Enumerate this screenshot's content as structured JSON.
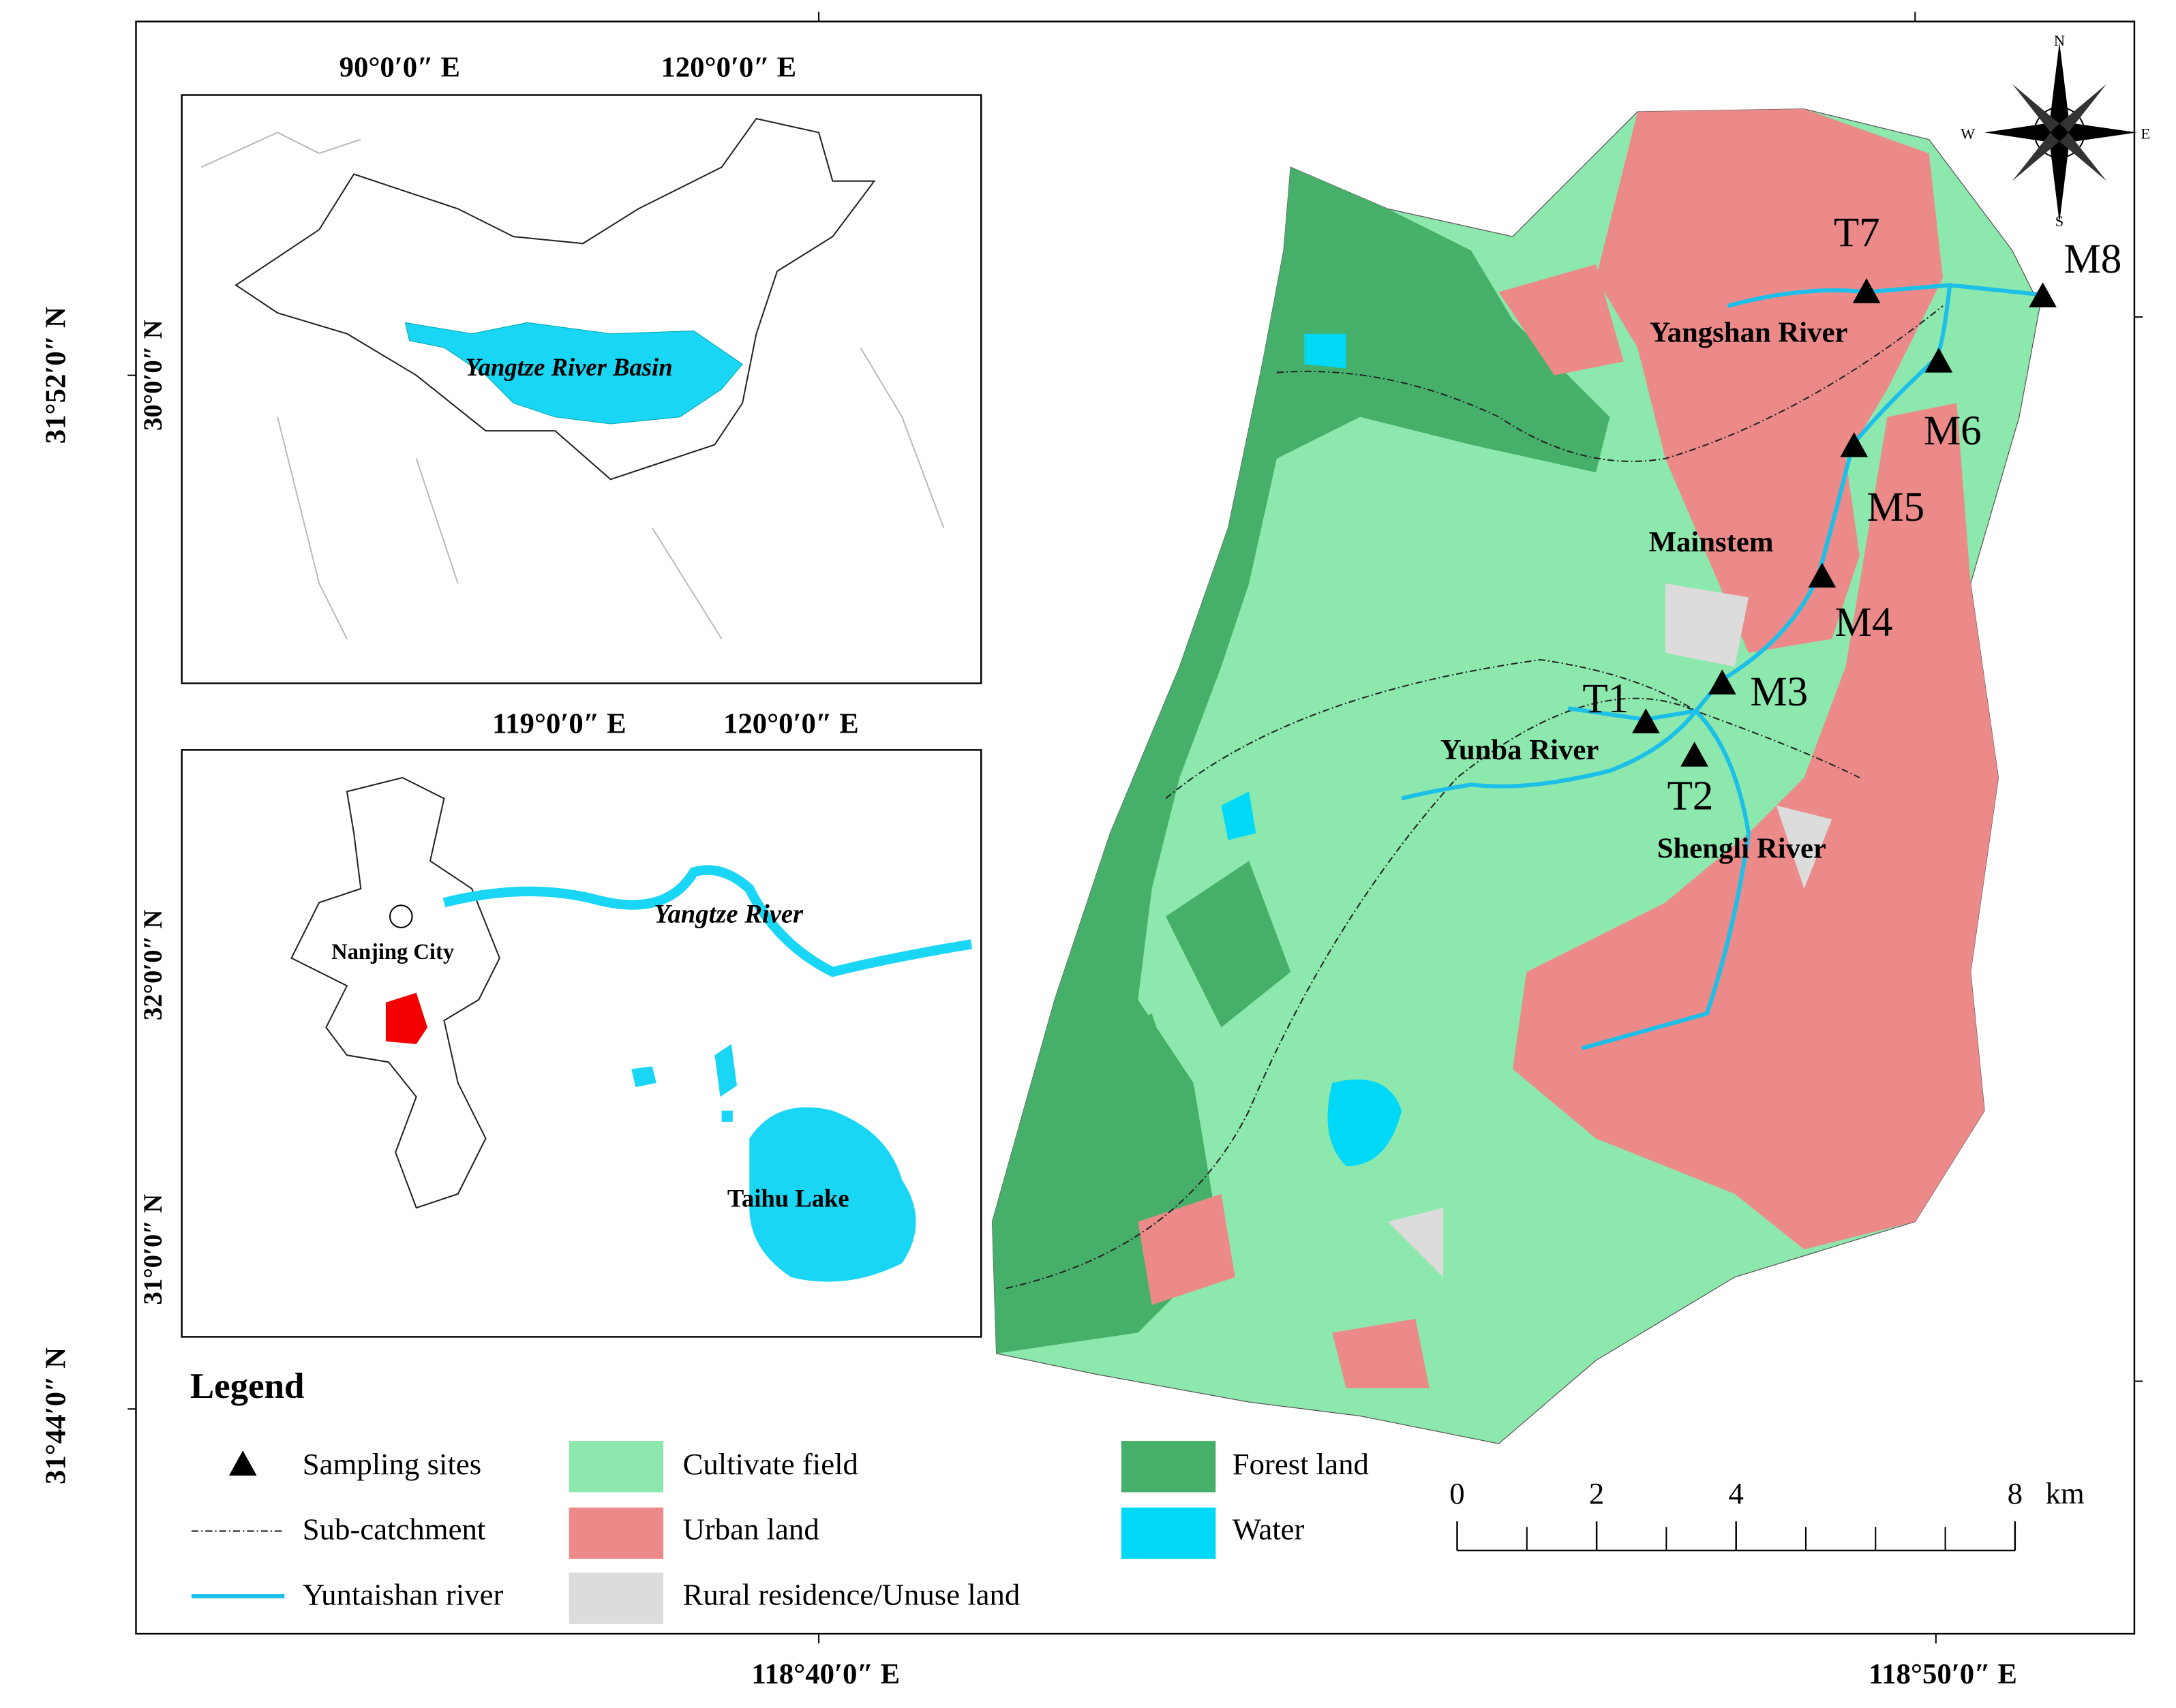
{
  "frame": {
    "lat_top": "31°52′0″ N",
    "lat_bottom": "31°44′0″ N",
    "lon_left": "118°40′0″ E",
    "lon_right": "118°50′0″ E"
  },
  "inset_asia": {
    "lon_1": "90°0′0″ E",
    "lon_2": "120°0′0″ E",
    "lat_1": "30°0′0″ N",
    "basin": "Yangtze River Basin"
  },
  "inset_region": {
    "lon_1": "119°0′0″ E",
    "lon_2": "120°0′0″ E",
    "lat_1": "32°0′0″ N",
    "lat_2": "31°0′0″ N",
    "river": "Yangtze River",
    "city": "Nanjing City",
    "lake": "Taihu Lake"
  },
  "main_map": {
    "sites": [
      "T7",
      "M8",
      "M6",
      "M5",
      "M4",
      "M3",
      "T1",
      "T2"
    ],
    "rivers": [
      "Yangshan River",
      "Mainstem",
      "Yunba River",
      "Shengli River"
    ]
  },
  "compass": {
    "north": "N",
    "east": "E",
    "south": "S",
    "west": "W"
  },
  "legend": {
    "title": "Legend",
    "items": [
      "Sampling sites",
      "Sub-catchment",
      "Yuntaishan river",
      "Cultivate field",
      "Urban land",
      "Rural residence/Unuse land",
      "Forest land",
      "Water"
    ]
  },
  "scale_bar": {
    "ticks": [
      0,
      2,
      4,
      8
    ],
    "unit": "km"
  }
}
